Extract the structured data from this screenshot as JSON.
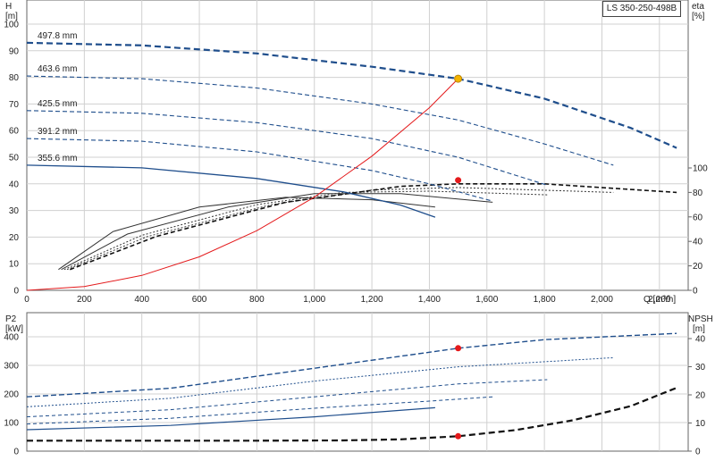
{
  "model_label": "LS 350-250-498B",
  "colors": {
    "blue": "#1f4e8c",
    "black": "#111111",
    "red": "#e41a1c",
    "orange": "#f5b400",
    "grid": "#d0d0d0"
  },
  "chart_data": [
    {
      "type": "line",
      "name": "head-efficiency",
      "left_axis": {
        "title": "H",
        "unit": "[m]",
        "ylim": [
          0,
          100
        ],
        "ticks": [
          "0",
          "10",
          "20",
          "30",
          "40",
          "50",
          "60",
          "70",
          "80",
          "90",
          "100"
        ]
      },
      "right_axis": {
        "title": "eta",
        "unit": "[%]",
        "ylim": [
          0,
          100
        ],
        "ticks": [
          "0",
          "20",
          "40",
          "60",
          "80",
          "100"
        ]
      },
      "x_axis": {
        "label": "Q [m³/h]",
        "xlim": [
          0,
          2300
        ],
        "ticks": [
          "0",
          "200",
          "400",
          "600",
          "800",
          "1,000",
          "1,200",
          "1,400",
          "1,600",
          "1,800",
          "2,000",
          "2,200"
        ]
      },
      "grid": true,
      "head_curves": [
        {
          "label": "497.8 mm",
          "x": [
            0,
            400,
            800,
            1200,
            1500,
            1800,
            2100,
            2260
          ],
          "y": [
            93,
            92,
            89,
            84,
            79.5,
            72,
            61,
            53.5
          ]
        },
        {
          "label": "463.6 mm",
          "x": [
            0,
            400,
            800,
            1200,
            1500,
            1800,
            2040
          ],
          "y": [
            80.5,
            79.5,
            76,
            70,
            64,
            55,
            47
          ]
        },
        {
          "label": "425.5 mm",
          "x": [
            0,
            400,
            800,
            1200,
            1500,
            1810
          ],
          "y": [
            67.5,
            66.5,
            63,
            57,
            50,
            39.5
          ]
        },
        {
          "label": "391.2 mm",
          "x": [
            0,
            400,
            800,
            1200,
            1400,
            1620
          ],
          "y": [
            57,
            56,
            52,
            45,
            40,
            33.5
          ]
        },
        {
          "label": "355.6 mm",
          "x": [
            0,
            400,
            800,
            1100,
            1300,
            1420
          ],
          "y": [
            47,
            46,
            42,
            37,
            32,
            27.5
          ]
        }
      ],
      "efficiency_curves": [
        {
          "x": [
            110,
            300,
            600,
            900,
            1200,
            1420
          ],
          "y": [
            17,
            48,
            68,
            76,
            74,
            68
          ]
        },
        {
          "x": [
            120,
            350,
            700,
            1000,
            1300,
            1620
          ],
          "y": [
            17,
            46,
            68,
            79,
            79,
            72
          ]
        },
        {
          "x": [
            130,
            400,
            800,
            1100,
            1400,
            1810
          ],
          "y": [
            17,
            45,
            70,
            80,
            81,
            78
          ]
        },
        {
          "x": [
            140,
            420,
            850,
            1200,
            1500,
            2040
          ],
          "y": [
            17,
            44,
            70,
            82,
            84,
            80
          ]
        },
        {
          "x": [
            150,
            450,
            900,
            1300,
            1500,
            1800,
            2260
          ],
          "y": [
            17,
            44,
            72,
            85,
            87,
            87,
            80
          ]
        }
      ],
      "system_curve": {
        "x": [
          0,
          200,
          400,
          600,
          800,
          1000,
          1200,
          1400,
          1500
        ],
        "y": [
          0,
          1.4,
          5.6,
          12.6,
          22.4,
          35,
          50.4,
          68.6,
          79.5
        ]
      },
      "duty_point": {
        "x": 1500,
        "y": 79.5
      },
      "efficiency_point": {
        "x": 1500,
        "y": 90
      }
    },
    {
      "type": "line",
      "name": "power-npsh",
      "left_axis": {
        "title": "P2",
        "unit": "[kW]",
        "ylim": [
          0,
          420
        ],
        "ticks": [
          "0",
          "100",
          "200",
          "300",
          "400"
        ]
      },
      "right_axis": {
        "title": "NPSH",
        "unit": "[m]",
        "ylim": [
          0,
          42
        ],
        "ticks": [
          "0",
          "10",
          "20",
          "30",
          "40"
        ]
      },
      "x_axis": {
        "xlim": [
          0,
          2300
        ]
      },
      "grid": true,
      "power_curves": [
        {
          "x": [
            0,
            500,
            1000,
            1500,
            1800,
            2260
          ],
          "y": [
            190,
            220,
            290,
            360,
            390,
            412
          ]
        },
        {
          "x": [
            0,
            500,
            1000,
            1500,
            2040
          ],
          "y": [
            155,
            185,
            245,
            295,
            327
          ]
        },
        {
          "x": [
            0,
            500,
            1000,
            1500,
            1810
          ],
          "y": [
            120,
            145,
            190,
            235,
            250
          ]
        },
        {
          "x": [
            0,
            500,
            1000,
            1400,
            1620
          ],
          "y": [
            95,
            115,
            150,
            175,
            190
          ]
        },
        {
          "x": [
            0,
            500,
            1000,
            1420
          ],
          "y": [
            75,
            90,
            120,
            152
          ]
        }
      ],
      "npsh_curve": {
        "x": [
          0,
          400,
          800,
          1100,
          1300,
          1500,
          1700,
          1900,
          2100,
          2260
        ],
        "y": [
          3.7,
          3.7,
          3.7,
          3.8,
          4.2,
          5.3,
          7.5,
          11,
          16,
          22.5
        ]
      },
      "power_point": {
        "x": 1500,
        "y": 360
      },
      "npsh_point": {
        "x": 1500,
        "y": 5.3
      }
    }
  ]
}
